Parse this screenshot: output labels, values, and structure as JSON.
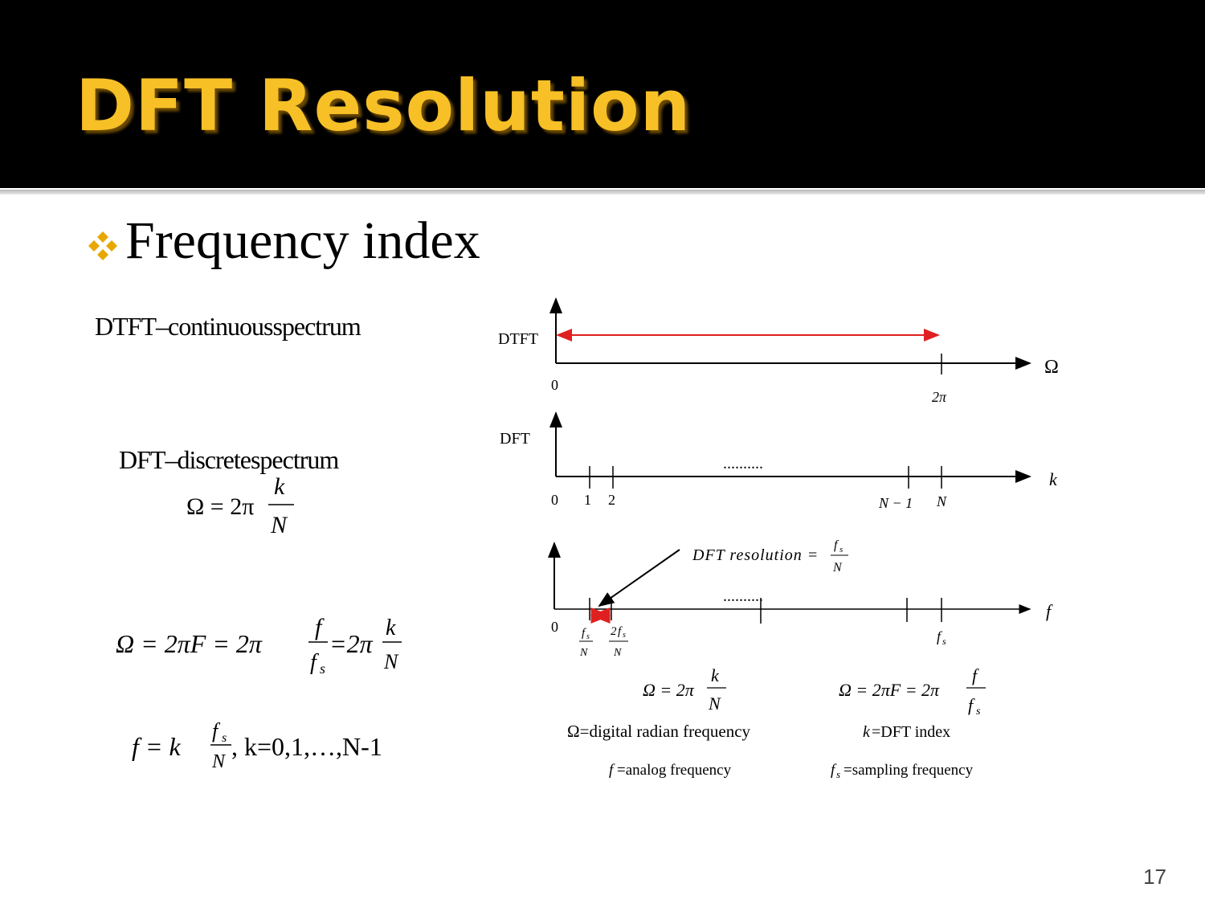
{
  "slide": {
    "title": "DFT Resolution",
    "bullet": "Frequency index",
    "page_number": "17",
    "colors": {
      "title": "#f6c026",
      "bullet": "#e8a700",
      "arrow": "#e02020"
    }
  },
  "left": {
    "dtft_label": "DTFT–continuousspectrum",
    "dft_label": "DFT–discretespectrum",
    "omega_eq": "Ω = 2π",
    "k": "k",
    "N": "N",
    "big_eq_part1": "Ω = 2πF = 2π",
    "f": "f",
    "fs": "f",
    "s": "s",
    "big_eq_part2": "=2π",
    "f_eq": "f = k",
    "k_range": ",  k=0,1,…,N-1"
  },
  "diagram": {
    "dtft": {
      "label": "DTFT",
      "zero": "0",
      "two_pi": "2π",
      "axis": "Ω"
    },
    "dft": {
      "label": "DFT",
      "ticks": [
        "0",
        "1",
        "2",
        "N − 1",
        "N"
      ],
      "dots": "..........",
      "axis": "k"
    },
    "freq": {
      "resolution_label": "DFT resolution =",
      "zero": "0",
      "dots": "..........",
      "axis": "f",
      "two": "2"
    },
    "formulas": {
      "omega_k": "Ω = 2π",
      "omega_f": "Ω = 2πF = 2π",
      "def_omega": "Ω=digital radian frequency",
      "def_k": "=DFT index",
      "def_f": "=analog frequency",
      "def_fs": "=sampling frequency"
    }
  }
}
